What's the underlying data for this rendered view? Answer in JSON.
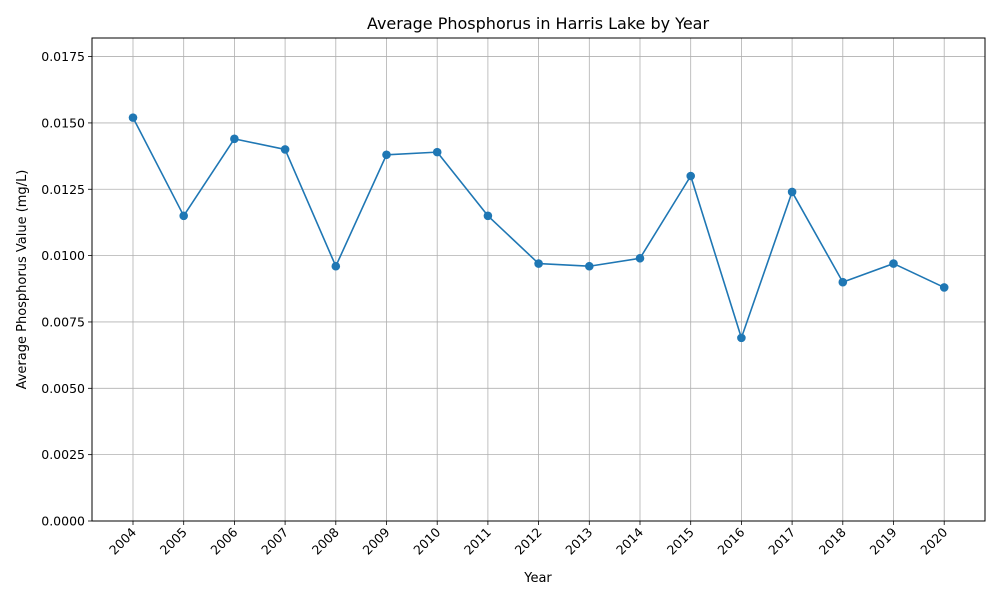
{
  "chart_data": {
    "type": "line",
    "title": "Average Phosphorus in Harris Lake by Year",
    "xlabel": "Year",
    "ylabel": "Average Phosphorus Value (mg/L)",
    "categories": [
      "2004",
      "2005",
      "2006",
      "2007",
      "2008",
      "2009",
      "2010",
      "2011",
      "2012",
      "2013",
      "2014",
      "2015",
      "2016",
      "2017",
      "2018",
      "2019",
      "2020"
    ],
    "series": [
      {
        "values": [
          0.0152,
          0.0115,
          0.0144,
          0.014,
          0.0096,
          0.0138,
          0.0139,
          0.0115,
          0.0097,
          0.0096,
          0.0099,
          0.013,
          0.0069,
          0.0124,
          0.009,
          0.0097,
          0.0088
        ],
        "color": "#1f77b4",
        "marker": "circle"
      }
    ],
    "ylim": [
      0,
      0.0182
    ],
    "yticks": [
      "0.0000",
      "0.0025",
      "0.0050",
      "0.0075",
      "0.0100",
      "0.0125",
      "0.0150",
      "0.0175"
    ],
    "grid": true,
    "legend": "none"
  }
}
